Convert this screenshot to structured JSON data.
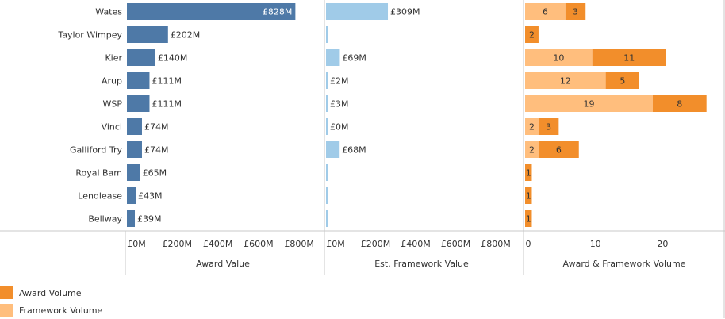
{
  "chart_data": {
    "type": "bar",
    "orientation": "horizontal",
    "categories": [
      "Wates",
      "Taylor Wimpey",
      "Kier",
      "Arup",
      "WSP",
      "Vinci",
      "Galliford Try",
      "Royal Bam",
      "Lendlease",
      "Bellway"
    ],
    "panels": [
      {
        "xlabel": "Award Value",
        "color": "#4e79a7",
        "values": [
          828,
          202,
          140,
          111,
          111,
          74,
          74,
          65,
          43,
          39
        ],
        "value_labels": [
          "£828M",
          "£202M",
          "£140M",
          "£111M",
          "£111M",
          "£74M",
          "£74M",
          "£65M",
          "£43M",
          "£39M"
        ],
        "xlim": [
          0,
          1000
        ],
        "ticks": [
          0,
          200,
          400,
          600,
          800
        ],
        "tick_labels": [
          "£0M",
          "£200M",
          "£400M",
          "£600M",
          "£800M"
        ]
      },
      {
        "xlabel": "Est. Framework Value",
        "color": "#a0cbe8",
        "values": [
          309,
          0,
          69,
          2,
          3,
          0,
          68,
          0,
          0,
          0
        ],
        "value_labels": [
          "£309M",
          "",
          "£69M",
          "£2M",
          "£3M",
          "£0M",
          "£68M",
          "",
          "",
          ""
        ],
        "xlim": [
          0,
          1000
        ],
        "ticks": [
          0,
          200,
          400,
          600,
          800
        ],
        "tick_labels": [
          "£0M",
          "£200M",
          "£400M",
          "£600M",
          "£800M"
        ]
      },
      {
        "xlabel": "Award & Framework Volume",
        "stacked": true,
        "xlim": [
          0,
          30
        ],
        "ticks": [
          0,
          10,
          20
        ],
        "tick_labels": [
          "0",
          "10",
          "20"
        ],
        "series": [
          {
            "name": "Framework Volume",
            "color": "#ffbe7d",
            "values": [
              6,
              0,
              10,
              12,
              19,
              2,
              2,
              0,
              0,
              0
            ]
          },
          {
            "name": "Award Volume",
            "color": "#f28e2b",
            "values": [
              3,
              2,
              11,
              5,
              8,
              3,
              6,
              1,
              1,
              1
            ]
          }
        ]
      }
    ],
    "legend": [
      {
        "name": "Award Volume",
        "color": "#f28e2b"
      },
      {
        "name": "Framework Volume",
        "color": "#ffbe7d"
      }
    ]
  }
}
